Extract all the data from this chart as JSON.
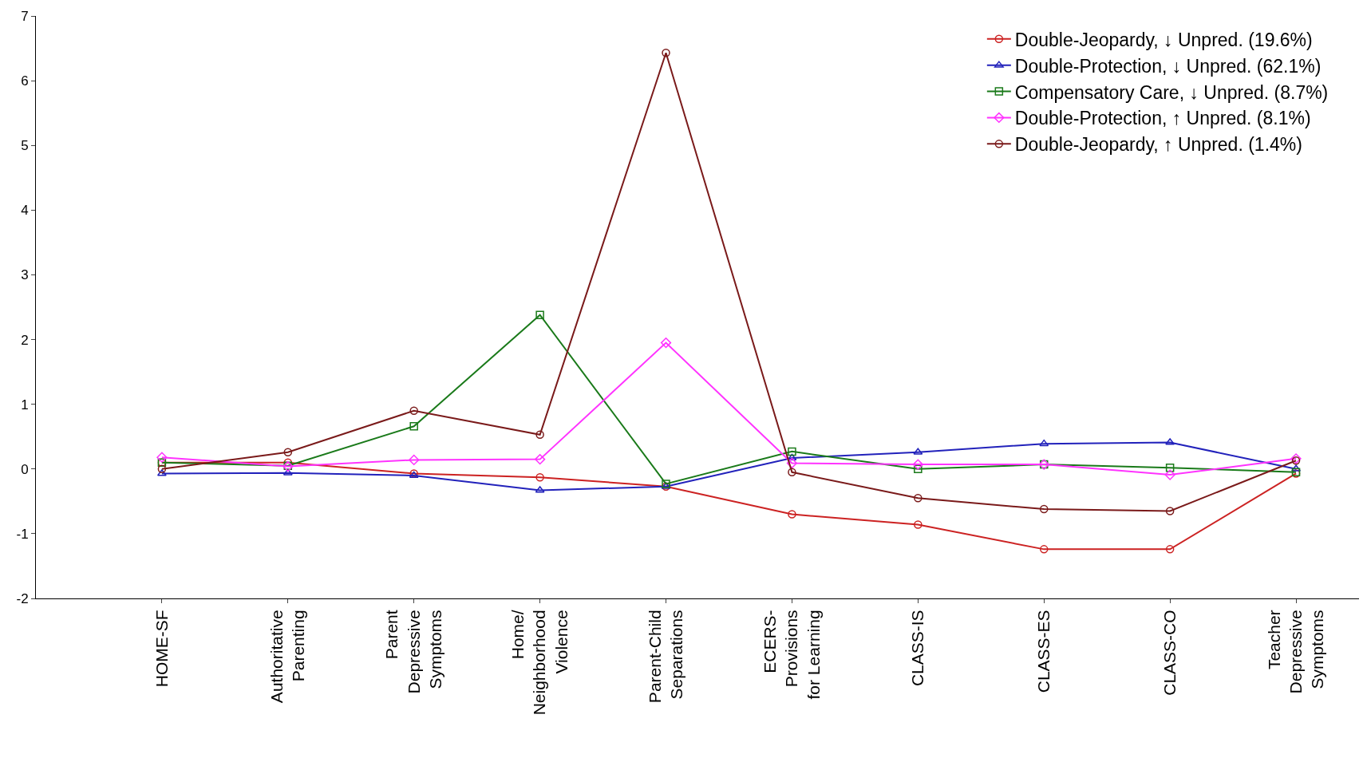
{
  "chart_data": {
    "type": "line",
    "categories": [
      "HOME-SF",
      "Authoritative\nParenting",
      "Parent\nDepressive\nSymptoms",
      "Home/\nNeighborhood\nViolence",
      "Parent-Child\nSeparations",
      "ECERS-\nProvisions\nfor Learning",
      "CLASS-IS",
      "CLASS-ES",
      "CLASS-CO",
      "Teacher\nDepressive\nSymptoms"
    ],
    "series": [
      {
        "name": "Double-Jeopardy, ↓ Unpred. (19.6%)",
        "color": "#cc2222",
        "marker": "circle",
        "values": [
          0.1,
          0.1,
          -0.07,
          -0.13,
          -0.27,
          -0.7,
          -0.86,
          -1.24,
          -1.24,
          -0.07
        ]
      },
      {
        "name": "Double-Protection, ↓ Unpred. (62.1%)",
        "color": "#2222bb",
        "marker": "triangle",
        "values": [
          -0.07,
          -0.06,
          -0.1,
          -0.33,
          -0.27,
          0.17,
          0.26,
          0.39,
          0.41,
          0.0
        ]
      },
      {
        "name": "Compensatory Care, ↓ Unpred. (8.7%)",
        "color": "#1a7a1a",
        "marker": "square",
        "values": [
          0.1,
          0.05,
          0.66,
          2.38,
          -0.23,
          0.27,
          0.0,
          0.07,
          0.02,
          -0.05
        ]
      },
      {
        "name": "Double-Protection, ↑ Unpred. (8.1%)",
        "color": "#ff33ff",
        "marker": "diamond",
        "values": [
          0.18,
          0.04,
          0.14,
          0.15,
          1.95,
          0.09,
          0.07,
          0.07,
          -0.09,
          0.16
        ]
      },
      {
        "name": "Double-Jeopardy, ↑ Unpred. (1.4%)",
        "color": "#7a1a1a",
        "marker": "circle",
        "values": [
          0.0,
          0.26,
          0.9,
          0.53,
          6.43,
          -0.05,
          -0.45,
          -0.62,
          -0.65,
          0.13
        ]
      }
    ],
    "ylim": [
      -2,
      7
    ],
    "yticks": [
      -2,
      -1,
      0,
      1,
      2,
      3,
      4,
      5,
      6,
      7
    ],
    "legend": "top right",
    "line_style": "solid"
  }
}
